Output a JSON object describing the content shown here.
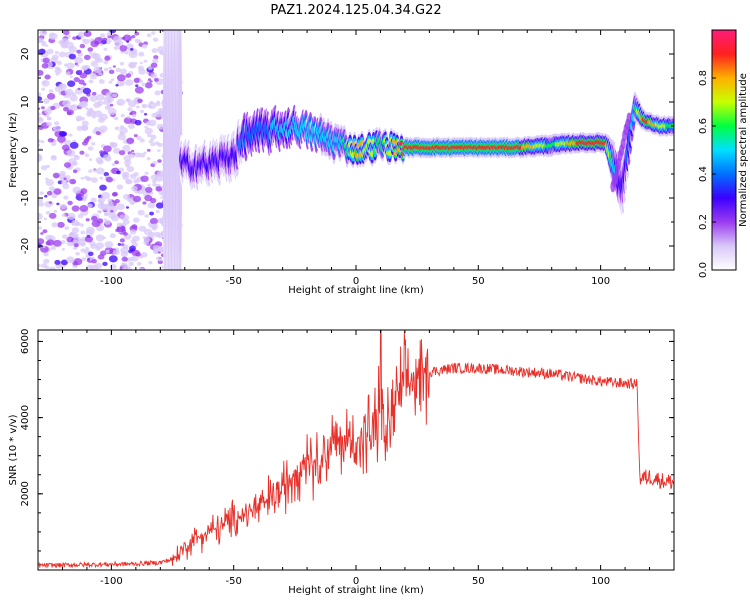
{
  "figure": {
    "title": "PAZ1.2024.125.04.34.G22"
  },
  "colors": {
    "snr_line": "#e8302a",
    "colormap": [
      "#ffffff",
      "#d8c8f8",
      "#9b3cf0",
      "#3b00ff",
      "#0070ff",
      "#00e0ff",
      "#00ff40",
      "#c8ff00",
      "#ffb000",
      "#ff2020",
      "#ff1c7a"
    ]
  },
  "chart_data": [
    {
      "type": "heatmap",
      "id": "spectrogram",
      "xlabel": "Height of straight line (km)",
      "ylabel": "Frequency (Hz)",
      "xlim": [
        -130,
        130
      ],
      "ylim": [
        -25,
        25
      ],
      "x_ticks": [
        -100,
        -50,
        0,
        50,
        100
      ],
      "y_ticks": [
        -20,
        -10,
        0,
        10,
        20
      ],
      "colorbar": {
        "label": "Normalized spectral amplitude",
        "range": [
          0,
          1
        ],
        "ticks": [
          0.0,
          0.2,
          0.4,
          0.6,
          0.8
        ]
      },
      "ridge_profile": [
        {
          "x": -130,
          "f": 0,
          "amp": 0.12,
          "spread": 24
        },
        {
          "x": -72,
          "f": 0,
          "amp": 0.15,
          "spread": 22
        },
        {
          "x": -78,
          "f": -2,
          "amp": 0.25,
          "spread": 2
        },
        {
          "x": -70,
          "f": -3,
          "amp": 0.3,
          "spread": 2.5
        },
        {
          "x": -60,
          "f": -3,
          "amp": 0.25,
          "spread": 2.5
        },
        {
          "x": -50,
          "f": -1,
          "amp": 0.3,
          "spread": 3
        },
        {
          "x": -45,
          "f": 3,
          "amp": 0.4,
          "spread": 2.5
        },
        {
          "x": -35,
          "f": 4,
          "amp": 0.45,
          "spread": 2.5
        },
        {
          "x": -25,
          "f": 5,
          "amp": 0.5,
          "spread": 2
        },
        {
          "x": -15,
          "f": 3,
          "amp": 0.5,
          "spread": 1.8
        },
        {
          "x": -5,
          "f": 1,
          "amp": 0.55,
          "spread": 1.5
        },
        {
          "x": 0,
          "f": 0,
          "amp": 0.8,
          "spread": 1.2
        },
        {
          "x": 10,
          "f": 1,
          "amp": 0.6,
          "spread": 1.3
        },
        {
          "x": 20,
          "f": 0.5,
          "amp": 0.9,
          "spread": 1
        },
        {
          "x": 65,
          "f": 0.5,
          "amp": 0.92,
          "spread": 1
        },
        {
          "x": 80,
          "f": 1,
          "amp": 0.6,
          "spread": 1.1
        },
        {
          "x": 90,
          "f": 1.5,
          "amp": 0.85,
          "spread": 1
        },
        {
          "x": 102,
          "f": 1.5,
          "amp": 0.85,
          "spread": 1
        },
        {
          "x": 109,
          "f": -8,
          "amp": 0.25,
          "spread": 4
        },
        {
          "x": 114,
          "f": 9,
          "amp": 0.55,
          "spread": 1.5
        },
        {
          "x": 118,
          "f": 6,
          "amp": 0.9,
          "spread": 1
        },
        {
          "x": 124,
          "f": 5,
          "amp": 0.7,
          "spread": 1
        },
        {
          "x": 130,
          "f": 5,
          "amp": 0.6,
          "spread": 1
        }
      ]
    },
    {
      "type": "line",
      "id": "snr",
      "xlabel": "Height of straight line (km)",
      "ylabel": "SNR (10 * v/v)",
      "xlim": [
        -130,
        130
      ],
      "ylim": [
        0,
        6300
      ],
      "x_ticks": [
        -100,
        -50,
        0,
        50,
        100
      ],
      "y_ticks": [
        2000,
        4000,
        6000
      ],
      "series": [
        {
          "name": "",
          "x": [
            -130,
            -120,
            -110,
            -100,
            -90,
            -80,
            -75,
            -72,
            -68,
            -64,
            -60,
            -56,
            -52,
            -48,
            -44,
            -40,
            -36,
            -32,
            -28,
            -24,
            -20,
            -16,
            -12,
            -8,
            -4,
            0,
            4,
            8,
            10,
            12,
            14,
            16,
            20,
            25,
            30,
            40,
            50,
            60,
            70,
            80,
            90,
            100,
            110,
            115,
            116,
            120,
            125,
            130
          ],
          "y": [
            120,
            130,
            140,
            150,
            160,
            200,
            280,
            450,
            700,
            900,
            1000,
            1100,
            1250,
            1400,
            1500,
            1650,
            1800,
            2000,
            2300,
            2700,
            3000,
            2800,
            3200,
            3300,
            3350,
            3400,
            3500,
            3700,
            4300,
            3400,
            3900,
            4400,
            4800,
            5100,
            5200,
            5300,
            5300,
            5250,
            5200,
            5150,
            5050,
            4950,
            4900,
            4880,
            2400,
            2450,
            2350,
            2300
          ]
        }
      ]
    }
  ]
}
